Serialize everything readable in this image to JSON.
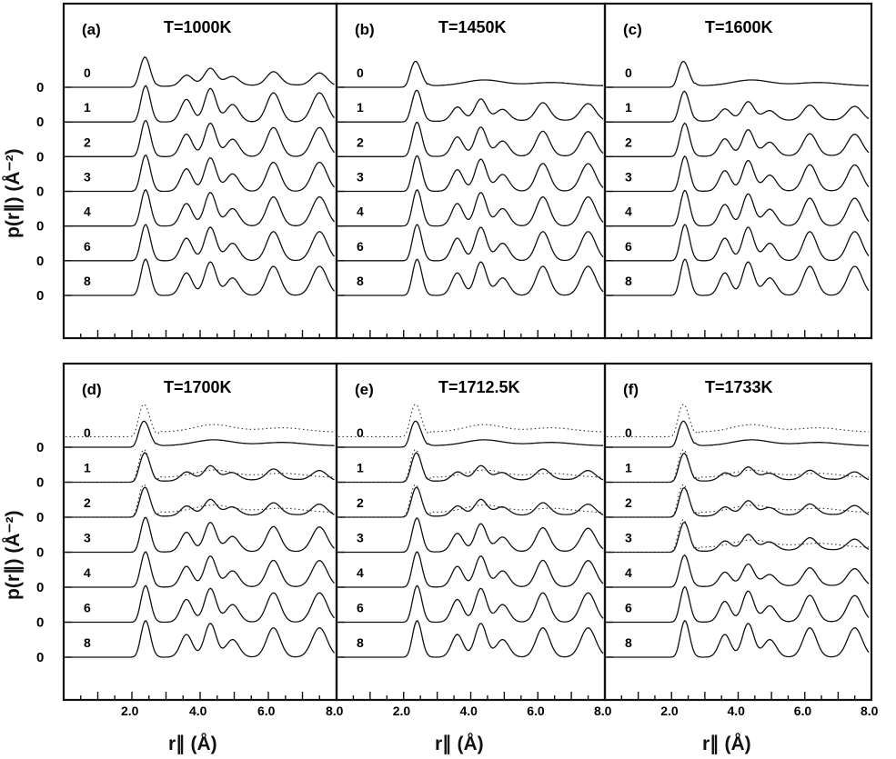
{
  "figure": {
    "y_axis_label": "p(r∥) (Å⁻²)",
    "x_axis_label": "r∥ (Å)"
  },
  "chart_data": [
    {
      "panel": "(a)",
      "title": "T=1000K",
      "type": "line",
      "xlim": [
        0,
        8.0
      ],
      "x_ticks": [
        "2.0",
        "4.0",
        "6.0",
        "8.0"
      ],
      "y_tick_label": "0",
      "series": [
        {
          "name": "0",
          "order": 0.45,
          "dotted": false
        },
        {
          "name": "1",
          "order": 1.0,
          "dotted": false
        },
        {
          "name": "2",
          "order": 1.0,
          "dotted": false
        },
        {
          "name": "3",
          "order": 1.0,
          "dotted": false
        },
        {
          "name": "4",
          "order": 1.0,
          "dotted": false
        },
        {
          "name": "6",
          "order": 1.0,
          "dotted": false
        },
        {
          "name": "8",
          "order": 1.0,
          "dotted": false
        }
      ]
    },
    {
      "panel": "(b)",
      "title": "T=1450K",
      "type": "line",
      "xlim": [
        0,
        8.0
      ],
      "x_ticks": [
        "2.0",
        "4.0",
        "6.0",
        "8.0"
      ],
      "y_tick_label": "0",
      "series": [
        {
          "name": "0",
          "order": 0.0,
          "dotted": false
        },
        {
          "name": "1",
          "order": 0.6,
          "dotted": false
        },
        {
          "name": "2",
          "order": 0.85,
          "dotted": false
        },
        {
          "name": "3",
          "order": 0.95,
          "dotted": false
        },
        {
          "name": "4",
          "order": 1.0,
          "dotted": false
        },
        {
          "name": "6",
          "order": 1.0,
          "dotted": false
        },
        {
          "name": "8",
          "order": 1.0,
          "dotted": false
        }
      ]
    },
    {
      "panel": "(c)",
      "title": "T=1600K",
      "type": "line",
      "xlim": [
        0,
        8.0
      ],
      "x_ticks": [
        "2.0",
        "4.0",
        "6.0",
        "8.0"
      ],
      "y_tick_label": "0",
      "series": [
        {
          "name": "0",
          "order": 0.0,
          "dotted": false
        },
        {
          "name": "1",
          "order": 0.5,
          "dotted": false
        },
        {
          "name": "2",
          "order": 0.75,
          "dotted": false
        },
        {
          "name": "3",
          "order": 0.9,
          "dotted": false
        },
        {
          "name": "4",
          "order": 0.95,
          "dotted": false
        },
        {
          "name": "6",
          "order": 1.0,
          "dotted": false
        },
        {
          "name": "8",
          "order": 1.0,
          "dotted": false
        }
      ]
    },
    {
      "panel": "(d)",
      "title": "T=1700K",
      "type": "line",
      "xlim": [
        0,
        8.0
      ],
      "x_ticks": [
        "2.0",
        "4.0",
        "6.0",
        "8.0"
      ],
      "y_tick_label": "0",
      "series": [
        {
          "name": "0",
          "order": 0.0,
          "dotted": true
        },
        {
          "name": "1",
          "order": 0.35,
          "dotted": true
        },
        {
          "name": "2",
          "order": 0.4,
          "dotted": true
        },
        {
          "name": "3",
          "order": 0.85,
          "dotted": false
        },
        {
          "name": "4",
          "order": 0.9,
          "dotted": false
        },
        {
          "name": "6",
          "order": 1.0,
          "dotted": false
        },
        {
          "name": "8",
          "order": 1.0,
          "dotted": false
        }
      ]
    },
    {
      "panel": "(e)",
      "title": "T=1712.5K",
      "type": "line",
      "xlim": [
        0,
        8.0
      ],
      "x_ticks": [
        "2.0",
        "4.0",
        "6.0",
        "8.0"
      ],
      "y_tick_label": "0",
      "series": [
        {
          "name": "0",
          "order": 0.0,
          "dotted": true
        },
        {
          "name": "1",
          "order": 0.35,
          "dotted": true
        },
        {
          "name": "2",
          "order": 0.4,
          "dotted": true
        },
        {
          "name": "3",
          "order": 0.8,
          "dotted": false
        },
        {
          "name": "4",
          "order": 0.9,
          "dotted": false
        },
        {
          "name": "6",
          "order": 1.0,
          "dotted": false
        },
        {
          "name": "8",
          "order": 1.0,
          "dotted": false
        }
      ]
    },
    {
      "panel": "(f)",
      "title": "T=1733K",
      "type": "line",
      "xlim": [
        0,
        8.0
      ],
      "x_ticks": [
        "2.0",
        "4.0",
        "6.0",
        "8.0"
      ],
      "y_tick_label": "0",
      "series": [
        {
          "name": "0",
          "order": 0.0,
          "dotted": true
        },
        {
          "name": "1",
          "order": 0.3,
          "dotted": true
        },
        {
          "name": "2",
          "order": 0.35,
          "dotted": true
        },
        {
          "name": "3",
          "order": 0.4,
          "dotted": true
        },
        {
          "name": "4",
          "order": 0.6,
          "dotted": false
        },
        {
          "name": "6",
          "order": 0.9,
          "dotted": false
        },
        {
          "name": "8",
          "order": 1.0,
          "dotted": false
        }
      ]
    }
  ]
}
